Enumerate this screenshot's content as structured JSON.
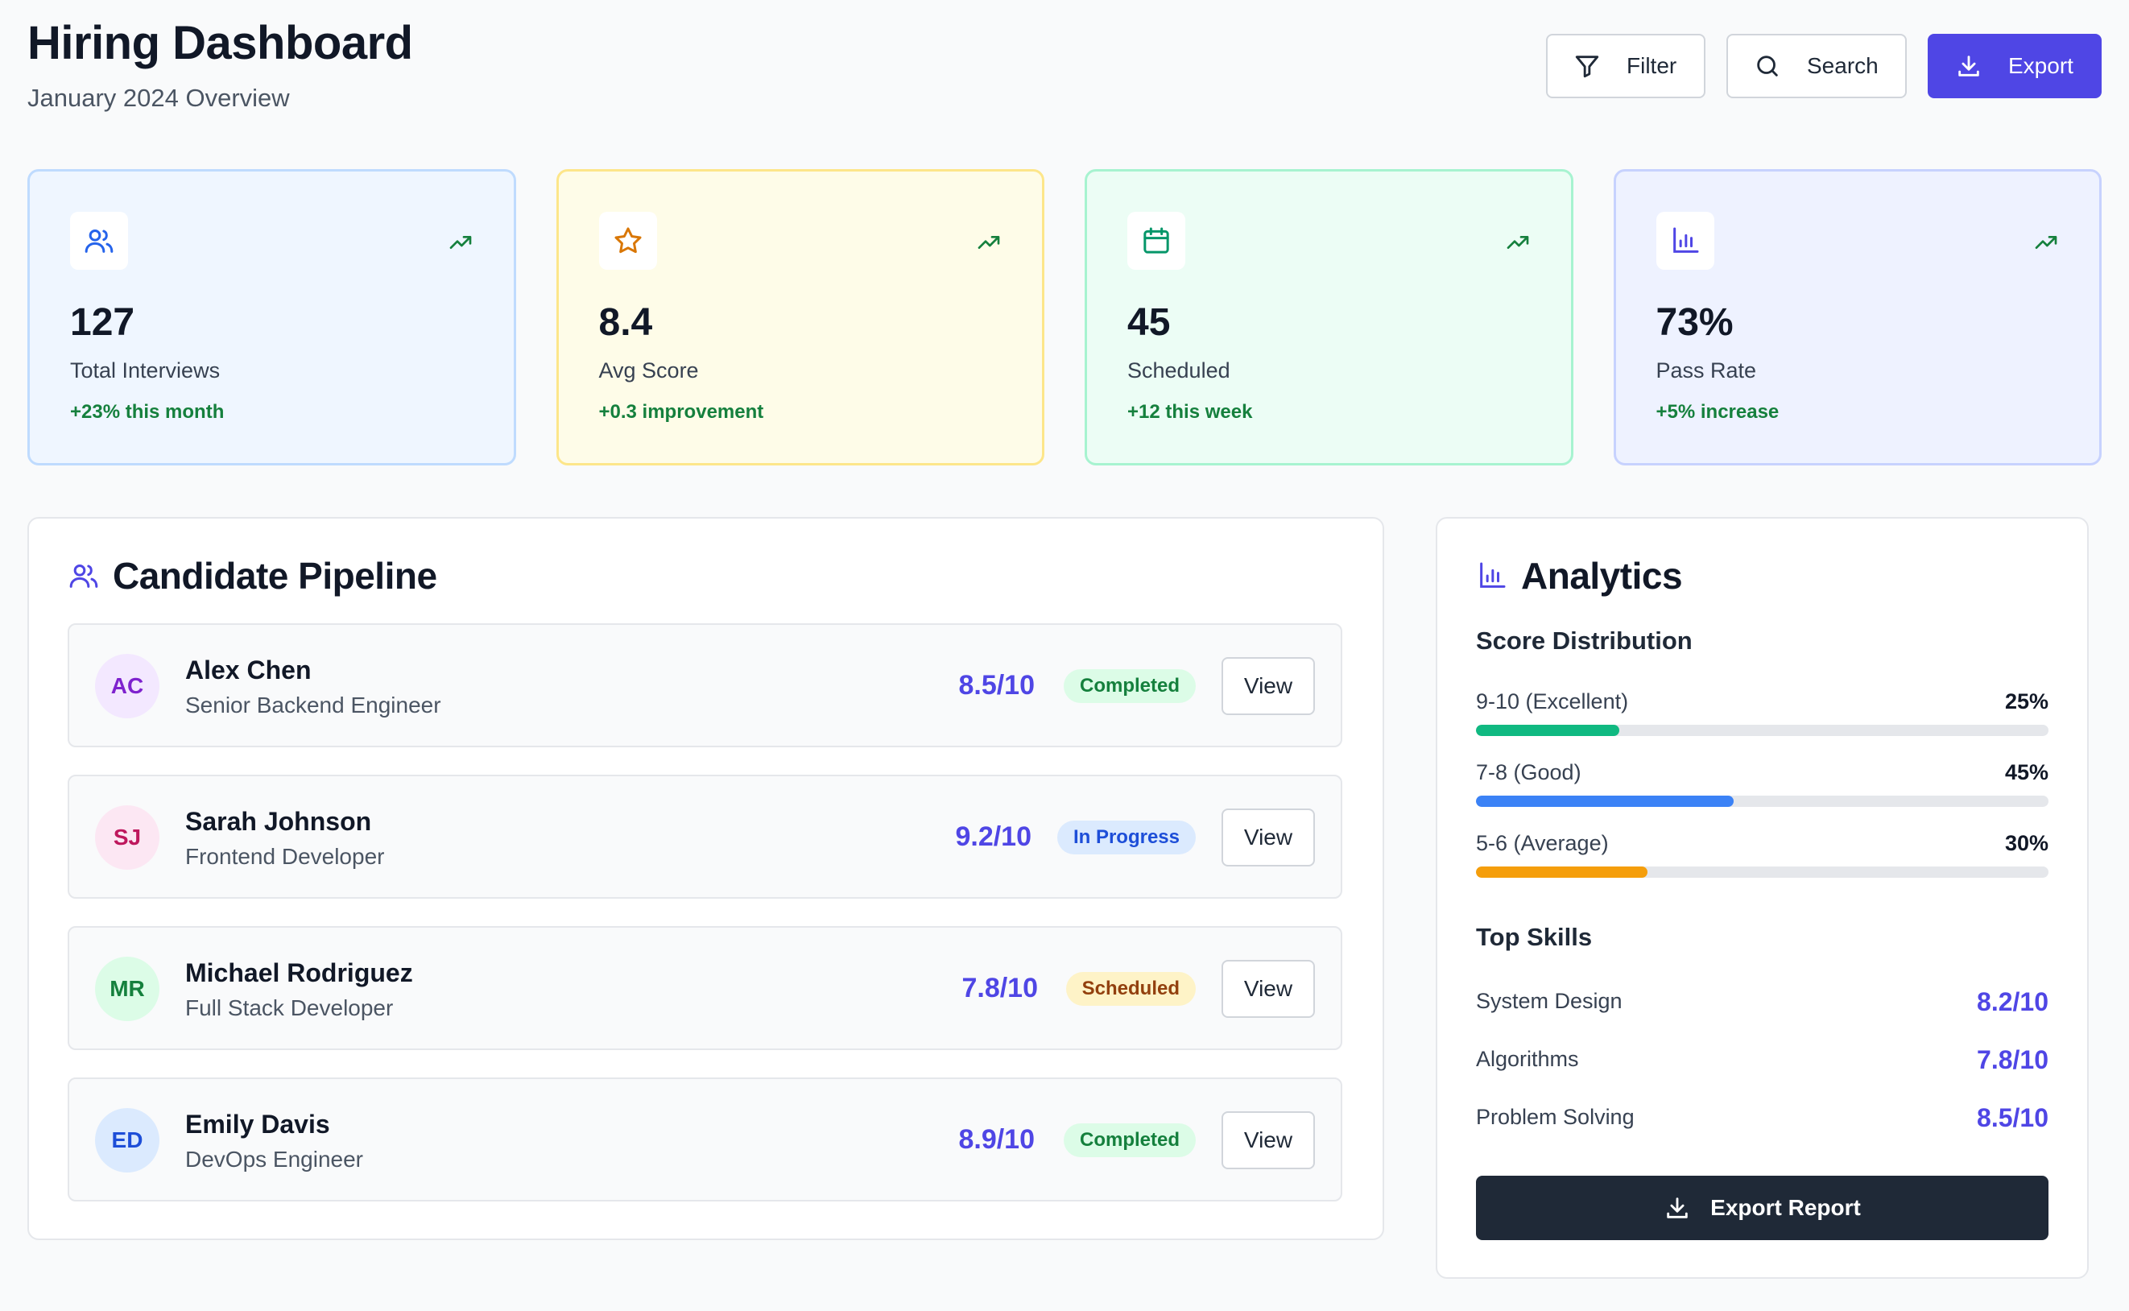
{
  "header": {
    "title": "Hiring Dashboard",
    "subtitle": "January 2024 Overview",
    "filter_label": "Filter",
    "search_label": "Search",
    "export_label": "Export"
  },
  "stats": [
    {
      "icon": "users-icon",
      "value": "127",
      "label": "Total Interviews",
      "delta": "+23% this month",
      "color": "#2563eb"
    },
    {
      "icon": "star-icon",
      "value": "8.4",
      "label": "Avg Score",
      "delta": "+0.3 improvement",
      "color": "#d97706"
    },
    {
      "icon": "calendar-icon",
      "value": "45",
      "label": "Scheduled",
      "delta": "+12 this week",
      "color": "#059669"
    },
    {
      "icon": "bar-chart-icon",
      "value": "73%",
      "label": "Pass Rate",
      "delta": "+5% increase",
      "color": "#4f46e5"
    }
  ],
  "pipeline": {
    "title": "Candidate Pipeline",
    "view_label": "View",
    "candidates": [
      {
        "initials": "AC",
        "name": "Alex Chen",
        "role": "Senior Backend Engineer",
        "score": "8.5/10",
        "status": "Completed"
      },
      {
        "initials": "SJ",
        "name": "Sarah Johnson",
        "role": "Frontend Developer",
        "score": "9.2/10",
        "status": "In Progress"
      },
      {
        "initials": "MR",
        "name": "Michael Rodriguez",
        "role": "Full Stack Developer",
        "score": "7.8/10",
        "status": "Scheduled"
      },
      {
        "initials": "ED",
        "name": "Emily Davis",
        "role": "DevOps Engineer",
        "score": "8.9/10",
        "status": "Completed"
      }
    ]
  },
  "analytics": {
    "title": "Analytics",
    "distribution_title": "Score Distribution",
    "distribution": [
      {
        "label": "9-10 (Excellent)",
        "value": "25%",
        "fraction": 0.25,
        "color": "#10b981"
      },
      {
        "label": "7-8 (Good)",
        "value": "45%",
        "fraction": 0.45,
        "color": "#3b82f6"
      },
      {
        "label": "5-6 (Average)",
        "value": "30%",
        "fraction": 0.3,
        "color": "#f59e0b"
      }
    ],
    "skills_title": "Top Skills",
    "skills": [
      {
        "name": "System Design",
        "score": "8.2/10"
      },
      {
        "name": "Algorithms",
        "score": "7.8/10"
      },
      {
        "name": "Problem Solving",
        "score": "8.5/10"
      }
    ],
    "report_label": "Export Report"
  },
  "colors": {
    "accent": "#4f46e5",
    "success_text": "#15803d",
    "dark_button": "#1f2937"
  }
}
